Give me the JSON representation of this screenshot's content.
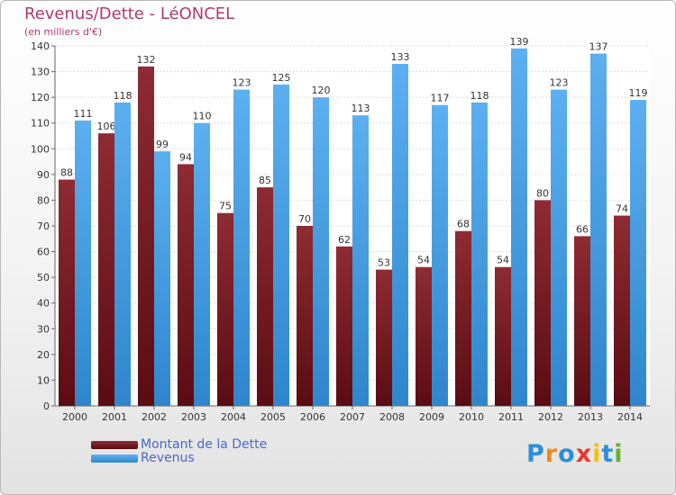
{
  "chart_data": {
    "type": "bar",
    "title": "Revenus/Dette - LéONCEL",
    "subtitle": "(en milliers d'€)",
    "categories": [
      "2000",
      "2001",
      "2002",
      "2003",
      "2004",
      "2005",
      "2006",
      "2007",
      "2008",
      "2009",
      "2010",
      "2011",
      "2012",
      "2013",
      "2014"
    ],
    "series": [
      {
        "name": "Montant de la Dette",
        "color": "#7a1a22",
        "values": [
          88,
          106,
          132,
          94,
          75,
          85,
          70,
          62,
          53,
          54,
          68,
          54,
          80,
          66,
          74
        ]
      },
      {
        "name": "Revenus",
        "color": "#4aa3ea",
        "values": [
          111,
          118,
          99,
          110,
          123,
          125,
          120,
          113,
          133,
          117,
          118,
          139,
          123,
          137,
          119
        ]
      }
    ],
    "ylim": [
      0,
      140
    ],
    "yticks": [
      0,
      10,
      20,
      30,
      40,
      50,
      60,
      70,
      80,
      90,
      100,
      110,
      120,
      130,
      140
    ],
    "grid": true,
    "legend_position": "bottom-left"
  },
  "branding": {
    "logo_letters": [
      {
        "ch": "P",
        "color": "#2e8fd6"
      },
      {
        "ch": "r",
        "color": "#f08a1c"
      },
      {
        "ch": "o",
        "color": "#2e8fd6"
      },
      {
        "ch": "x",
        "color": "#e23b2a"
      },
      {
        "ch": "i",
        "color": "#f4c20d"
      },
      {
        "ch": "t",
        "color": "#2e8fd6"
      },
      {
        "ch": "i",
        "color": "#67b32e"
      }
    ]
  }
}
